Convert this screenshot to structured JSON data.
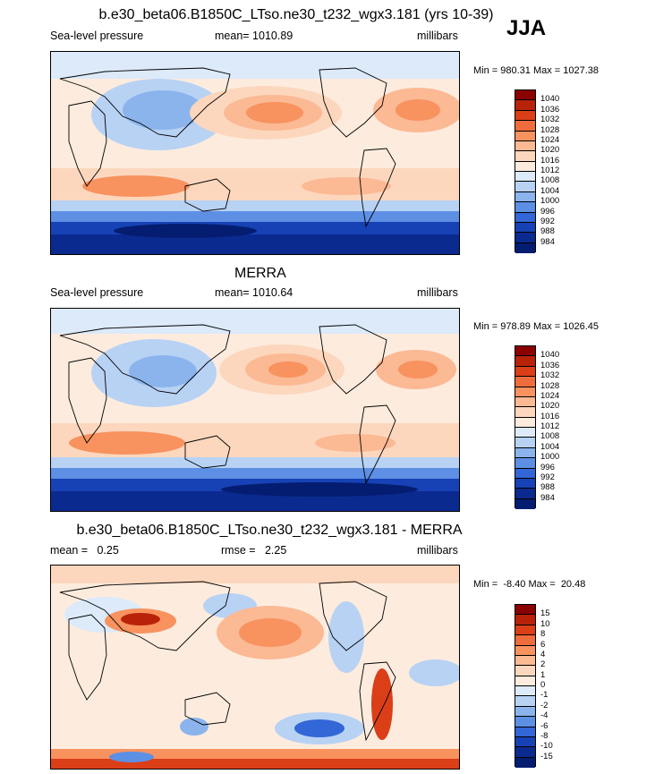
{
  "season": "JJA",
  "chart_data": [
    {
      "type": "heatmap",
      "title": "b.e30_beta06.B1850C_LTso.ne30_t232_wgx3.181 (yrs 10-39)",
      "left_label": "Sea-level pressure",
      "center_label": "mean= 1010.89",
      "right_label": "millibars",
      "minmax_label": "Min = 980.31 Max = 1027.38",
      "min": 980.31,
      "max": 1027.38,
      "mean": 1010.89,
      "levels": [
        "1040",
        "1036",
        "1032",
        "1028",
        "1024",
        "1020",
        "1016",
        "1012",
        "1008",
        "1004",
        "1000",
        "996",
        "992",
        "988",
        "984"
      ],
      "colors": [
        "#8b0000",
        "#b82208",
        "#db3f18",
        "#ef6c3c",
        "#f8925f",
        "#fbb994",
        "#fcd7bd",
        "#fdecde",
        "#dceafa",
        "#b8d2f4",
        "#8bb4ed",
        "#5d8fe4",
        "#3366d6",
        "#1742b6",
        "#0b2a8f",
        "#051d70"
      ]
    },
    {
      "type": "heatmap",
      "title": "MERRA",
      "left_label": "Sea-level pressure",
      "center_label": "mean= 1010.64",
      "right_label": "millibars",
      "minmax_label": "Min = 978.89 Max = 1026.45",
      "min": 978.89,
      "max": 1026.45,
      "mean": 1010.64,
      "levels": [
        "1040",
        "1036",
        "1032",
        "1028",
        "1024",
        "1020",
        "1016",
        "1012",
        "1008",
        "1004",
        "1000",
        "996",
        "992",
        "988",
        "984"
      ],
      "colors": [
        "#8b0000",
        "#b82208",
        "#db3f18",
        "#ef6c3c",
        "#f8925f",
        "#fbb994",
        "#fcd7bd",
        "#fdecde",
        "#dceafa",
        "#b8d2f4",
        "#8bb4ed",
        "#5d8fe4",
        "#3366d6",
        "#1742b6",
        "#0b2a8f",
        "#051d70"
      ]
    },
    {
      "type": "heatmap",
      "title": "b.e30_beta06.B1850C_LTso.ne30_t232_wgx3.181 - MERRA",
      "left_label": "mean =   0.25",
      "center_label": "rmse =   2.25",
      "right_label": "millibars",
      "minmax_label": "Min =  -8.40 Max =  20.48",
      "min": -8.4,
      "max": 20.48,
      "mean": 0.25,
      "rmse": 2.25,
      "levels": [
        "15",
        "10",
        "8",
        "6",
        "4",
        "2",
        "1",
        "0",
        "-1",
        "-2",
        "-4",
        "-6",
        "-8",
        "-10",
        "-15"
      ],
      "colors": [
        "#8b0000",
        "#b82208",
        "#db3f18",
        "#ef6c3c",
        "#f8925f",
        "#fbb994",
        "#fcd7bd",
        "#fdecde",
        "#dceafa",
        "#b8d2f4",
        "#8bb4ed",
        "#5d8fe4",
        "#3366d6",
        "#1742b6",
        "#0b2a8f",
        "#051d70"
      ]
    }
  ]
}
